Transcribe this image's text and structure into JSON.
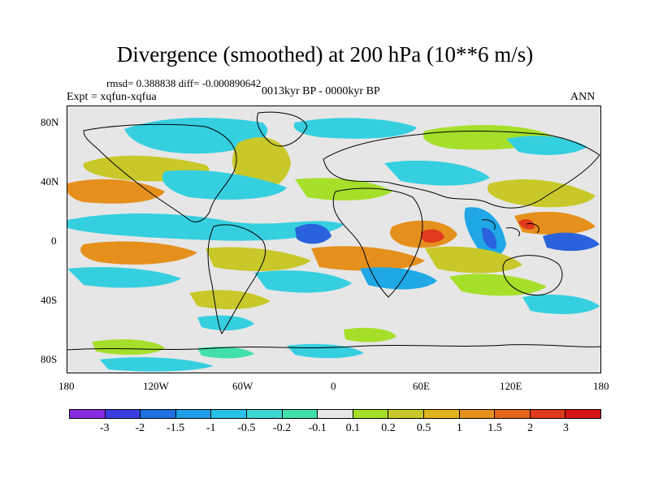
{
  "title": "Divergence (smoothed) at 200 hPa (10**6 m/s)",
  "stats_line": "rmsd= 0.388838 diff= -0.000890642",
  "expt_line": "Expt = xqfun-xqfua",
  "period_line": "0013kyr BP - 0000kyr BP",
  "season": "ANN",
  "lat_labels": [
    "80N",
    "40N",
    "0",
    "40S",
    "80S"
  ],
  "lon_labels": [
    "180",
    "120W",
    "60W",
    "0",
    "60E",
    "120E",
    "180"
  ],
  "colorbar": {
    "labels": [
      "-3",
      "-2",
      "-1.5",
      "-1",
      "-0.5",
      "-0.2",
      "-0.1",
      "0.1",
      "0.2",
      "0.5",
      "1",
      "1.5",
      "2",
      "3"
    ],
    "colors": [
      "#8b2be2",
      "#3a3ee0",
      "#1f6fe0",
      "#1e9ee6",
      "#2bc0e8",
      "#3fd6d0",
      "#41e0a8",
      "#e6e6e6",
      "#a6df2a",
      "#c8c82a",
      "#e1b51f",
      "#e5901d",
      "#e5651d",
      "#e0391d",
      "#d51414"
    ]
  },
  "map": {
    "field_colors": {
      "strong_neg": "#2a62dd",
      "neg": "#1fa7e6",
      "weak_neg": "#35cfe0",
      "near_zero_neg": "#43e0ad",
      "weak_pos": "#a6df2a",
      "pos": "#c8c82a",
      "strong_pos": "#e5901d",
      "max_pos": "#e0391d"
    }
  }
}
